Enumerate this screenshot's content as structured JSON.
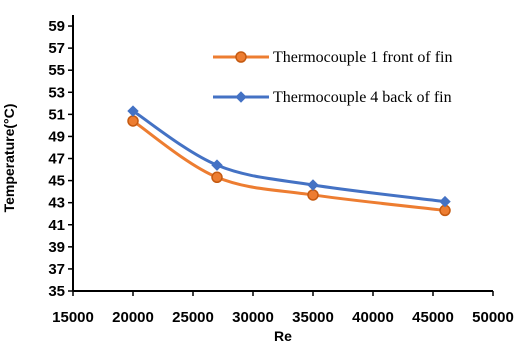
{
  "chart_data": {
    "type": "line",
    "title": "",
    "xlabel": "Re",
    "ylabel": "Temperature(°C)",
    "xlim": [
      15000,
      50000
    ],
    "ylim": [
      35,
      60
    ],
    "xticks": [
      15000,
      20000,
      25000,
      30000,
      35000,
      40000,
      45000,
      50000
    ],
    "yticks": [
      35,
      37,
      39,
      41,
      43,
      45,
      47,
      49,
      51,
      53,
      55,
      57,
      59
    ],
    "grid": false,
    "legend_position": "top-right",
    "series": [
      {
        "name": "Thermocouple 1 front of fin",
        "color": "#ED7D31",
        "marker": "circle",
        "x": [
          20000,
          27000,
          35000,
          46000
        ],
        "y": [
          50.4,
          45.3,
          43.7,
          42.3
        ]
      },
      {
        "name": "Thermocouple 4 back of fin",
        "color": "#4472C4",
        "marker": "diamond",
        "x": [
          20000,
          27000,
          35000,
          46000
        ],
        "y": [
          51.3,
          46.4,
          44.6,
          43.1
        ]
      }
    ]
  }
}
